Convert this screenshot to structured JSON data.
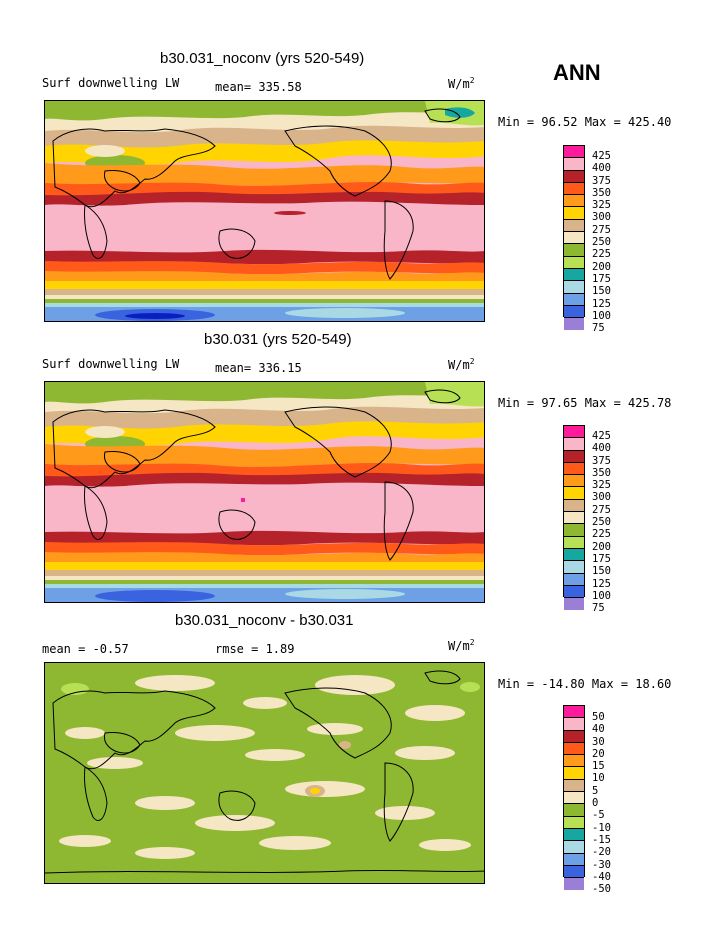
{
  "season": "ANN",
  "colors": {
    "c425": "#ff1a9c",
    "c400": "#f9b6c8",
    "c375": "#b5222a",
    "c350": "#ff5a1a",
    "c325": "#ff9a1a",
    "c300": "#ffd400",
    "c275": "#d9b48a",
    "c250": "#f5e6c4",
    "c225": "#8fb832",
    "c200": "#b8e055",
    "c175": "#16a7a0",
    "c150": "#aad9e6",
    "c125": "#6ea0e6",
    "c100": "#3a63e0",
    "c75": "#0a1fbf",
    "c50": "#9b7fd6"
  },
  "panels": [
    {
      "title": "b30.031_noconv (yrs 520-549)",
      "left_label": "Surf downwelling LW",
      "mean_label": "mean= 335.58",
      "rmse_label": "",
      "units": "W/m",
      "units_sup": "2",
      "minmax": "Min =  96.52 Max = 425.40",
      "colorbar_labels": [
        "425",
        "400",
        "375",
        "350",
        "325",
        "300",
        "275",
        "250",
        "225",
        "200",
        "175",
        "150",
        "125",
        "100",
        "75"
      ]
    },
    {
      "title": "b30.031 (yrs 520-549)",
      "left_label": "Surf downwelling LW",
      "mean_label": "mean= 336.15",
      "rmse_label": "",
      "units": "W/m",
      "units_sup": "2",
      "minmax": "Min =  97.65 Max = 425.78",
      "colorbar_labels": [
        "425",
        "400",
        "375",
        "350",
        "325",
        "300",
        "275",
        "250",
        "225",
        "200",
        "175",
        "150",
        "125",
        "100",
        "75"
      ]
    },
    {
      "title": "b30.031_noconv - b30.031",
      "left_label": "mean =   -0.57",
      "mean_label": "",
      "rmse_label": "rmse =    1.89",
      "units": "W/m",
      "units_sup": "2",
      "minmax": "Min = -14.80 Max =  18.60",
      "colorbar_labels": [
        "50",
        "40",
        "30",
        "20",
        "15",
        "10",
        "5",
        "0",
        "-5",
        "-10",
        "-15",
        "-20",
        "-30",
        "-40",
        "-50"
      ]
    }
  ]
}
